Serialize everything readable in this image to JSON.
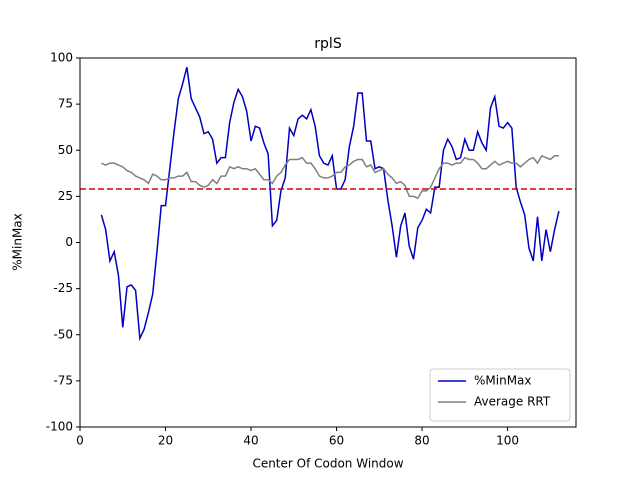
{
  "chart_data": {
    "type": "line",
    "title": "rplS",
    "xlabel": "Center Of Codon Window",
    "ylabel": "%MinMax",
    "x": [
      5,
      6,
      7,
      8,
      9,
      10,
      11,
      12,
      13,
      14,
      15,
      16,
      17,
      18,
      19,
      20,
      21,
      22,
      23,
      24,
      25,
      26,
      27,
      28,
      29,
      30,
      31,
      32,
      33,
      34,
      35,
      36,
      37,
      38,
      39,
      40,
      41,
      42,
      43,
      44,
      45,
      46,
      47,
      48,
      49,
      50,
      51,
      52,
      53,
      54,
      55,
      56,
      57,
      58,
      59,
      60,
      61,
      62,
      63,
      64,
      65,
      66,
      67,
      68,
      69,
      70,
      71,
      72,
      73,
      74,
      75,
      76,
      77,
      78,
      79,
      80,
      81,
      82,
      83,
      84,
      85,
      86,
      87,
      88,
      89,
      90,
      91,
      92,
      93,
      94,
      95,
      96,
      97,
      98,
      99,
      100,
      101,
      102,
      103,
      104,
      105,
      106,
      107,
      108,
      109,
      110,
      111,
      112
    ],
    "series": [
      {
        "name": "%MinMax",
        "color": "#0000c0",
        "values": [
          15,
          7,
          -10,
          -5,
          -18,
          -46,
          -24,
          -23,
          -26,
          -52,
          -47,
          -38,
          -28,
          -5,
          20,
          20,
          40,
          60,
          78,
          86,
          95,
          78,
          73,
          68,
          59,
          60,
          56,
          43,
          46,
          46,
          65,
          76,
          83,
          79,
          71,
          55,
          63,
          62,
          54,
          48,
          9,
          12,
          28,
          35,
          62,
          58,
          67,
          69,
          67,
          72,
          63,
          47,
          43,
          42,
          47,
          29,
          29,
          34,
          52,
          63,
          81,
          81,
          55,
          55,
          40,
          41,
          40,
          23,
          9,
          -8,
          9,
          16,
          -2,
          -9,
          8,
          12,
          18,
          16,
          30,
          30,
          50,
          56,
          52,
          45,
          46,
          56,
          50,
          50,
          60,
          54,
          50,
          73,
          79,
          63,
          62,
          65,
          62,
          30,
          22,
          15,
          -3,
          -10,
          14,
          -10,
          7,
          -5,
          7,
          17
        ]
      },
      {
        "name": "Average RRT",
        "color": "#808080",
        "values": [
          43,
          42,
          43,
          43,
          42,
          41,
          39,
          38,
          36,
          35,
          34,
          32,
          37,
          36,
          34,
          34,
          35,
          35,
          36,
          36,
          38,
          33,
          33,
          31,
          30,
          31,
          34,
          32,
          36,
          36,
          41,
          40,
          41,
          40,
          40,
          39,
          40,
          37,
          34,
          34,
          32,
          36,
          38,
          42,
          45,
          45,
          45,
          46,
          43,
          43,
          40,
          36,
          35,
          35,
          36,
          38,
          38,
          41,
          42,
          44,
          45,
          45,
          41,
          42,
          38,
          39,
          40,
          37,
          35,
          32,
          33,
          31,
          25,
          25,
          24,
          28,
          28,
          30,
          35,
          40,
          43,
          43,
          42,
          43,
          43,
          46,
          45,
          45,
          43,
          40,
          40,
          42,
          44,
          42,
          43,
          44,
          43,
          43,
          41,
          43,
          45,
          46,
          43,
          47,
          46,
          45,
          47,
          47
        ]
      }
    ],
    "hline": {
      "value": 29,
      "color": "#dd0000"
    },
    "xlim": [
      0,
      116
    ],
    "ylim": [
      -100,
      100
    ],
    "xticks": [
      0,
      20,
      40,
      60,
      80,
      100
    ],
    "yticks": [
      -100,
      -75,
      -50,
      -25,
      0,
      25,
      50,
      75,
      100
    ],
    "legend": "lower right"
  }
}
